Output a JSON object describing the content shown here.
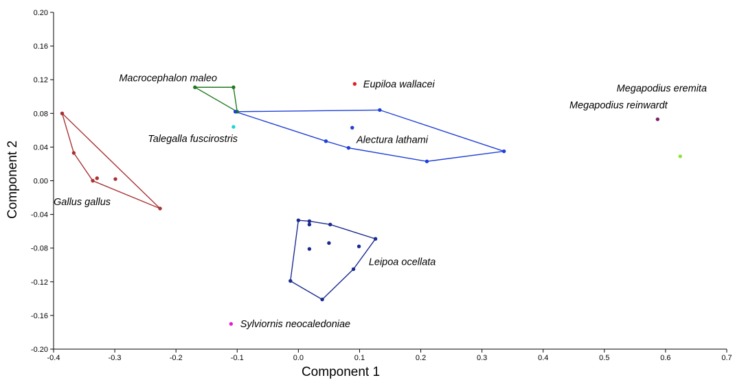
{
  "chart_data": {
    "type": "scatter",
    "title": "",
    "xlabel": "Component 1",
    "ylabel": "Component 2",
    "xlim": [
      -0.4,
      0.7
    ],
    "ylim": [
      -0.2,
      0.2
    ],
    "xticks": [
      "-0.4",
      "-0.3",
      "-0.2",
      "-0.1",
      "0.0",
      "0.1",
      "0.2",
      "0.3",
      "0.4",
      "0.5",
      "0.6",
      "0.7"
    ],
    "yticks": [
      "0.20",
      "0.16",
      "0.12",
      "0.08",
      "0.04",
      "0.00",
      "-0.04",
      "-0.08",
      "-0.12",
      "-0.16",
      "-0.20"
    ],
    "grid": false,
    "legend": "none",
    "series": [
      {
        "name": "Gallus gallus",
        "color": "#a83232",
        "points": [
          [
            -0.386,
            0.08
          ],
          [
            -0.367,
            0.033
          ],
          [
            -0.336,
            0.0
          ],
          [
            -0.329,
            0.003
          ],
          [
            -0.299,
            0.002
          ],
          [
            -0.226,
            -0.033
          ]
        ],
        "hull": [
          [
            -0.386,
            0.08
          ],
          [
            -0.226,
            -0.033
          ],
          [
            -0.336,
            0.0
          ],
          [
            -0.367,
            0.033
          ]
        ]
      },
      {
        "name": "Macrocephalon maleo",
        "color": "#1e7a1e",
        "points": [
          [
            -0.169,
            0.111
          ],
          [
            -0.106,
            0.111
          ],
          [
            -0.1,
            0.082
          ]
        ],
        "hull": [
          [
            -0.169,
            0.111
          ],
          [
            -0.106,
            0.111
          ],
          [
            -0.1,
            0.082
          ]
        ]
      },
      {
        "name": "Talegalla fuscirostris",
        "color": "#22d3d3",
        "points": [
          [
            -0.106,
            0.064
          ]
        ],
        "hull": []
      },
      {
        "name": "Eupiloa wallacei",
        "color": "#e02020",
        "points": [
          [
            0.092,
            0.115
          ]
        ],
        "hull": []
      },
      {
        "name": "Alectura lathami",
        "color": "#1f3fd6",
        "points": [
          [
            -0.103,
            0.082
          ],
          [
            0.133,
            0.084
          ],
          [
            0.336,
            0.035
          ],
          [
            0.21,
            0.023
          ],
          [
            0.082,
            0.039
          ],
          [
            0.045,
            0.047
          ],
          [
            0.088,
            0.063
          ]
        ],
        "hull": [
          [
            -0.103,
            0.082
          ],
          [
            0.133,
            0.084
          ],
          [
            0.336,
            0.035
          ],
          [
            0.21,
            0.023
          ],
          [
            0.082,
            0.039
          ],
          [
            0.045,
            0.047
          ]
        ]
      },
      {
        "name": "Megapodius reinwardt",
        "color": "#7a1f6e",
        "points": [
          [
            0.587,
            0.073
          ]
        ],
        "hull": []
      },
      {
        "name": "Megapodius eremita",
        "color": "#8fe23a",
        "points": [
          [
            0.624,
            0.029
          ]
        ],
        "hull": []
      },
      {
        "name": "Leipoa ocellata",
        "color": "#1a2a8f",
        "points": [
          [
            0.0,
            -0.047
          ],
          [
            0.018,
            -0.048
          ],
          [
            0.018,
            -0.052
          ],
          [
            0.052,
            -0.052
          ],
          [
            0.126,
            -0.069
          ],
          [
            0.099,
            -0.078
          ],
          [
            0.05,
            -0.074
          ],
          [
            0.018,
            -0.081
          ],
          [
            0.09,
            -0.105
          ],
          [
            0.039,
            -0.141
          ],
          [
            -0.013,
            -0.119
          ]
        ],
        "hull": [
          [
            0.0,
            -0.047
          ],
          [
            0.018,
            -0.048
          ],
          [
            0.052,
            -0.052
          ],
          [
            0.126,
            -0.069
          ],
          [
            0.09,
            -0.105
          ],
          [
            0.039,
            -0.141
          ],
          [
            -0.013,
            -0.119
          ]
        ]
      },
      {
        "name": "Sylviornis neocaledoniae",
        "color": "#e020d0",
        "points": [
          [
            -0.11,
            -0.17
          ]
        ],
        "hull": []
      }
    ],
    "annotations": [
      {
        "text": "Gallus gallus",
        "x": -0.4,
        "y": -0.025
      },
      {
        "text": "Macrocephalon maleo",
        "x": -0.293,
        "y": 0.122
      },
      {
        "text": "Talegalla fuscirostris",
        "x": -0.246,
        "y": 0.05
      },
      {
        "text": "Eupiloa wallacei",
        "x": 0.106,
        "y": 0.115
      },
      {
        "text": "Alectura lathami",
        "x": 0.095,
        "y": 0.049
      },
      {
        "text": "Megapodius reinwardt",
        "x": 0.443,
        "y": 0.09
      },
      {
        "text": "Megapodius eremita",
        "x": 0.52,
        "y": 0.11
      },
      {
        "text": "Leipoa ocellata",
        "x": 0.115,
        "y": -0.096
      },
      {
        "text": "Sylviornis neocaledoniae",
        "x": -0.095,
        "y": -0.17
      }
    ]
  }
}
